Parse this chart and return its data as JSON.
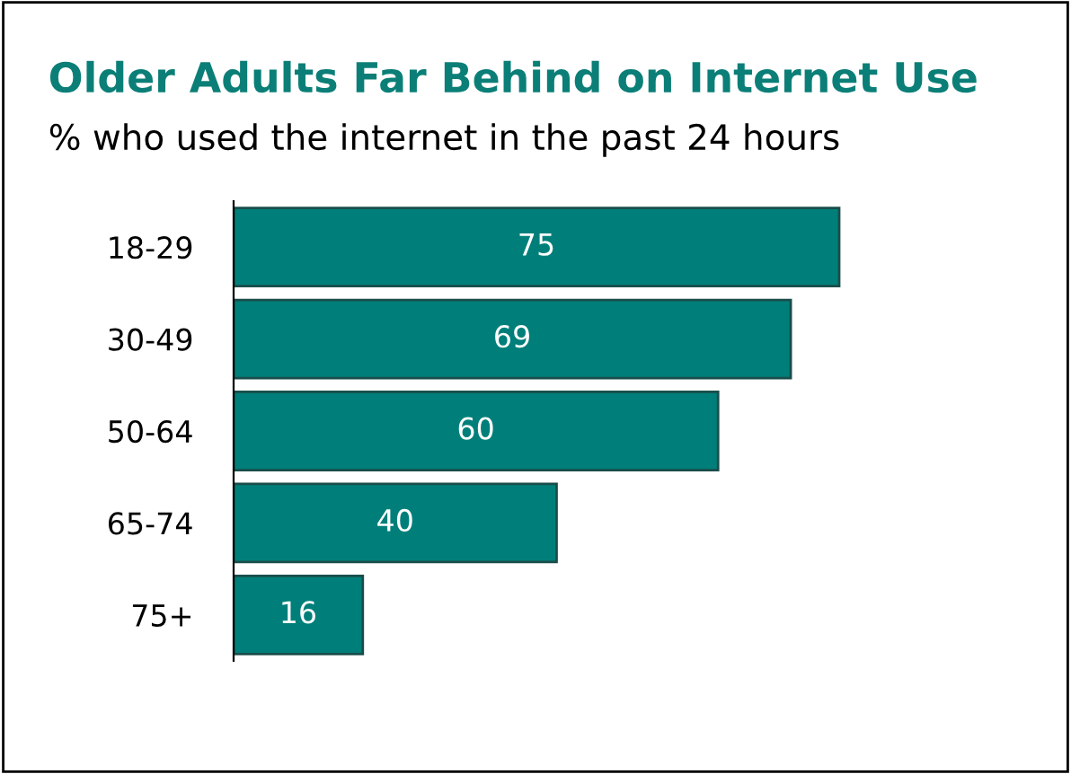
{
  "chart_data": {
    "type": "bar",
    "orientation": "horizontal",
    "title": "Older Adults Far Behind on Internet Use",
    "subtitle": "% who used the internet in the past 24 hours",
    "categories": [
      "18-29",
      "30-49",
      "50-64",
      "65-74",
      "75+"
    ],
    "values": [
      75,
      69,
      60,
      40,
      16
    ],
    "color": "#007f7a",
    "data_labels": true,
    "grid": false,
    "legend": false
  }
}
